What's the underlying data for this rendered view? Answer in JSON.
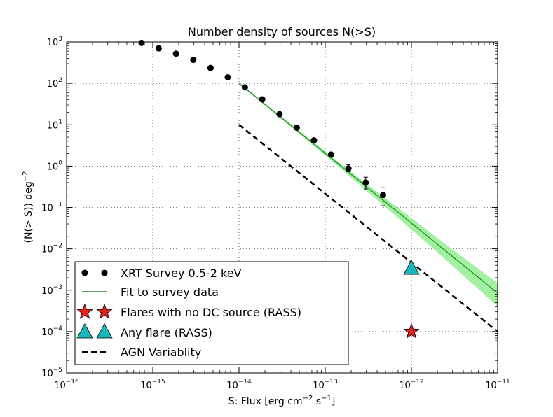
{
  "chart_data": {
    "type": "scatter",
    "title": "Number density of sources N(>S)",
    "xlabel": "S: Flux [erg cm",
    "xlabel_sup1": "−2",
    "xlabel_mid": " s",
    "xlabel_sup2": "−1",
    "xlabel_end": "]",
    "ylabel": "(N(> S)) deg",
    "ylabel_sup": "−2",
    "xscale": "log",
    "yscale": "log",
    "xlim_exp": [
      -16,
      -11
    ],
    "ylim_exp": [
      -5,
      3
    ],
    "grid": "dotted",
    "legend_position": "lower-left",
    "x_ticks": [
      {
        "exp": -16,
        "base": "10",
        "sup": "−16"
      },
      {
        "exp": -15,
        "base": "10",
        "sup": "−15"
      },
      {
        "exp": -14,
        "base": "10",
        "sup": "−14"
      },
      {
        "exp": -13,
        "base": "10",
        "sup": "−13"
      },
      {
        "exp": -12,
        "base": "10",
        "sup": "−12"
      },
      {
        "exp": -11,
        "base": "10",
        "sup": "−11"
      }
    ],
    "y_ticks": [
      {
        "exp": 3,
        "base": "10",
        "sup": "3"
      },
      {
        "exp": 2,
        "base": "10",
        "sup": "2"
      },
      {
        "exp": 1,
        "base": "10",
        "sup": "1"
      },
      {
        "exp": 0,
        "base": "10",
        "sup": "0"
      },
      {
        "exp": -1,
        "base": "10",
        "sup": "−1"
      },
      {
        "exp": -2,
        "base": "10",
        "sup": "−2"
      },
      {
        "exp": -3,
        "base": "10",
        "sup": "−3"
      },
      {
        "exp": -4,
        "base": "10",
        "sup": "−4"
      },
      {
        "exp": -5,
        "base": "10",
        "sup": "−5"
      }
    ],
    "series": [
      {
        "name": "XRT Survey 0.5-2 keV",
        "kind": "points",
        "color": "#000000",
        "x": [
          7.4e-16,
          1.17e-15,
          1.86e-15,
          2.95e-15,
          4.68e-15,
          7.4e-15,
          1.17e-14,
          1.86e-14,
          2.95e-14,
          4.68e-14,
          7.4e-14,
          1.17e-13,
          1.86e-13,
          2.95e-13,
          4.68e-13
        ],
        "y": [
          950,
          700,
          520,
          370,
          235,
          140,
          80,
          41,
          18,
          8.5,
          4.2,
          1.9,
          0.88,
          0.4,
          0.2
        ],
        "yerr_low": [
          0,
          0,
          0,
          0,
          0,
          0,
          0,
          0,
          0,
          0,
          0,
          0.2,
          0.15,
          0.12,
          0.09
        ],
        "yerr_high": [
          0,
          0,
          0,
          0,
          0,
          0,
          0,
          0,
          0,
          0,
          0,
          0.2,
          0.2,
          0.14,
          0.1
        ]
      },
      {
        "name": "Fit to survey data",
        "kind": "line",
        "color": "#228B22",
        "band_color": "#90EE90",
        "x": [
          1e-14,
          1e-11
        ],
        "y": [
          100,
          0.00085
        ],
        "band_low_factor_at_end": 0.5,
        "band_high_factor_at_end": 1.65
      },
      {
        "name": "Flares with no DC source (RASS)",
        "kind": "star",
        "color": "#E8211C",
        "x": [
          1e-12
        ],
        "y": [
          0.0001
        ]
      },
      {
        "name": "Any flare (RASS)",
        "kind": "triangle",
        "color": "#1BB6BC",
        "x": [
          1e-12
        ],
        "y": [
          0.0033
        ]
      },
      {
        "name": "AGN Variablity",
        "kind": "dashed",
        "color": "#000000",
        "x": [
          1e-14,
          1e-11
        ],
        "y": [
          10,
          0.0001
        ]
      }
    ]
  }
}
